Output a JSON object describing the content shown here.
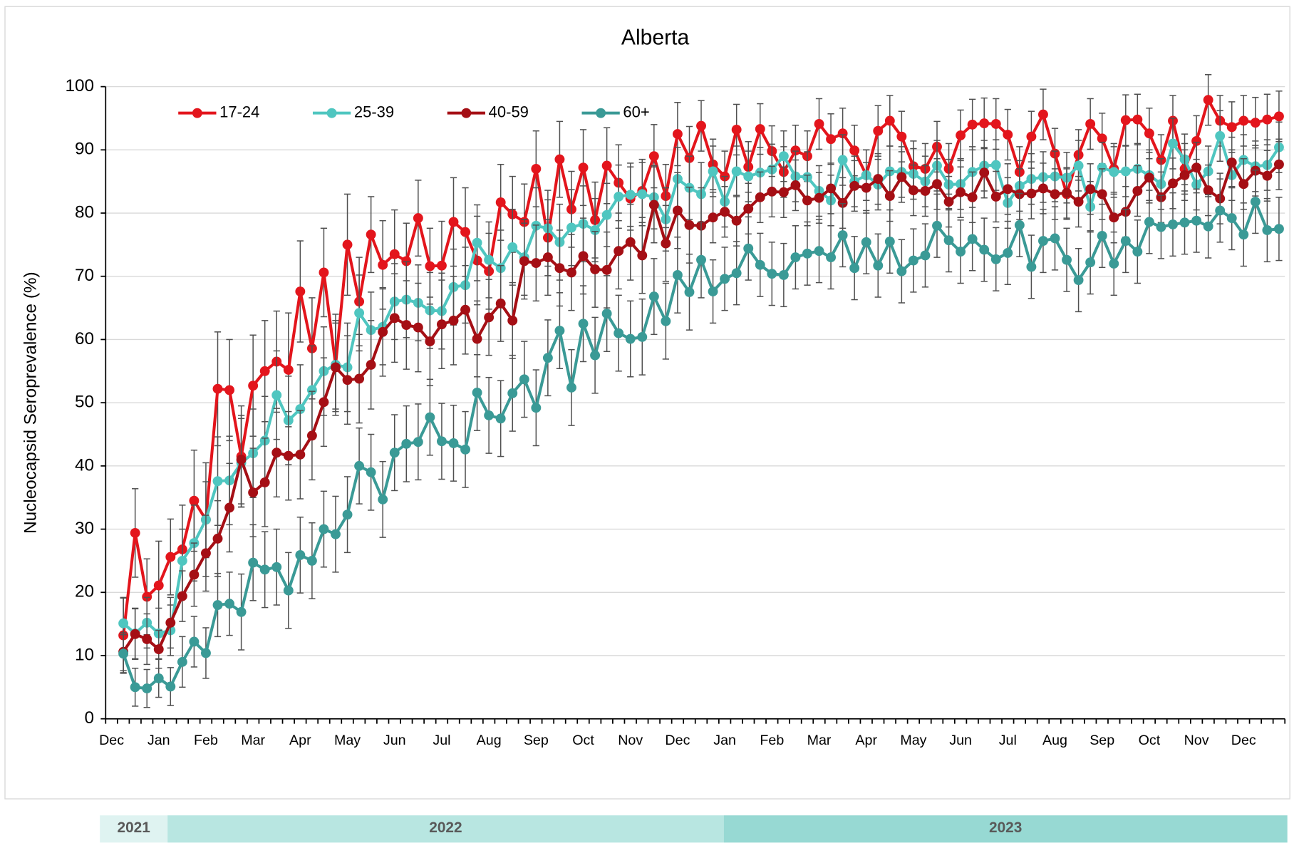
{
  "chart_data": {
    "type": "line",
    "title": "Alberta",
    "y_label": "Nucleocapsid Seroprevalence (%)",
    "categories": [
      "Dec",
      null,
      null,
      null,
      "Jan",
      null,
      null,
      null,
      "Feb",
      null,
      null,
      null,
      "Mar",
      null,
      null,
      null,
      "Apr",
      null,
      null,
      null,
      "May",
      null,
      null,
      null,
      "Jun",
      null,
      null,
      null,
      "Jul",
      null,
      null,
      null,
      "Aug",
      null,
      null,
      null,
      "Sep",
      null,
      null,
      null,
      "Oct",
      null,
      null,
      null,
      "Nov",
      null,
      null,
      null,
      "Dec",
      null,
      null,
      null,
      "Jan",
      null,
      null,
      null,
      "Feb",
      null,
      null,
      null,
      "Mar",
      null,
      null,
      null,
      "Apr",
      null,
      null,
      null,
      "May",
      null,
      null,
      null,
      "Jun",
      null,
      null,
      null,
      "Jul",
      null,
      null,
      null,
      "Aug",
      null,
      null,
      null,
      "Sep",
      null,
      null,
      null,
      "Oct",
      null,
      null,
      null,
      "Nov",
      null,
      null,
      null,
      "Dec",
      null,
      null
    ],
    "year_labels": [
      "2021",
      "2022",
      "2023"
    ],
    "ylim": [
      0,
      100
    ],
    "yticks": [
      0,
      10,
      20,
      30,
      40,
      50,
      60,
      70,
      80,
      90,
      100
    ],
    "grid": true,
    "legend": "upper left",
    "series": [
      {
        "name": "17-24",
        "color": "#e3151c",
        "values": [
          13.2,
          29.4,
          19.3,
          21.1,
          25.6,
          26.8,
          34.5,
          31.5,
          52.2,
          52.0,
          41.5,
          52.7,
          55.0,
          56.5,
          55.2,
          67.6,
          58.6,
          70.6,
          56.0,
          75.0,
          66.0,
          76.6,
          71.8,
          73.5,
          72.4,
          79.2,
          71.6,
          71.7,
          78.6,
          77.0,
          72.5,
          70.8,
          81.7,
          79.8,
          78.6,
          87.0,
          76.1,
          88.5,
          80.6,
          87.2,
          78.9,
          87.5,
          84.8,
          82.3,
          83.5,
          89.0,
          82.7,
          92.5,
          88.7,
          93.8,
          87.7,
          85.8,
          93.2,
          87.3,
          93.3,
          89.8,
          86.5,
          89.9,
          89.0,
          94.1,
          91.7,
          92.6,
          89.9,
          86.0,
          93.0,
          94.6,
          92.1,
          87.4,
          87.0,
          90.5,
          87.0,
          92.3,
          94.0,
          94.2,
          94.1,
          92.4,
          86.5,
          92.1,
          95.6,
          89.4,
          83.0,
          89.2,
          94.1,
          91.8,
          87.0,
          94.7,
          94.8,
          92.6,
          88.4,
          94.6,
          87.0,
          91.4,
          97.9,
          94.6,
          93.6,
          94.6,
          94.3,
          94.8,
          95.3
        ],
        "errors": [
          6,
          7,
          6,
          7,
          6,
          7,
          8,
          9,
          9,
          8,
          8,
          8,
          8,
          8,
          9,
          8,
          8,
          7,
          8,
          8,
          7,
          6,
          7,
          7,
          6,
          6,
          6,
          7,
          7,
          7,
          7,
          6,
          6,
          6,
          6,
          6,
          6,
          6,
          6,
          6,
          6,
          6,
          6,
          5,
          5,
          5,
          5,
          5,
          5,
          4,
          4,
          4,
          4,
          4,
          4,
          4,
          4,
          4,
          4,
          4,
          4,
          4,
          4,
          4,
          4,
          4,
          4,
          4,
          4,
          4,
          4,
          4,
          4,
          4,
          4,
          4,
          4,
          4,
          4,
          4,
          4,
          4,
          4,
          4,
          4,
          4,
          4,
          4,
          4,
          4,
          4,
          4,
          4,
          4,
          4,
          4,
          4,
          4,
          4
        ]
      },
      {
        "name": "25-39",
        "color": "#4fc6c0",
        "values": [
          15.1,
          13.5,
          15.2,
          13.5,
          14.0,
          25.0,
          27.8,
          31.5,
          37.6,
          37.7,
          40.5,
          42.0,
          44.0,
          51.2,
          47.2,
          49.0,
          52.0,
          55.0,
          56.0,
          55.6,
          64.2,
          61.5,
          62.0,
          66.0,
          66.3,
          65.8,
          64.6,
          64.5,
          68.3,
          68.6,
          75.3,
          72.6,
          71.3,
          74.6,
          73.0,
          78.0,
          77.6,
          75.4,
          77.7,
          78.3,
          77.3,
          79.7,
          82.6,
          82.9,
          83.0,
          82.5,
          79.0,
          85.4,
          84.0,
          83.0,
          86.6,
          81.8,
          86.6,
          85.8,
          86.4,
          86.9,
          89.0,
          85.8,
          85.7,
          83.5,
          82.0,
          88.4,
          85.0,
          86.0,
          84.5,
          86.6,
          86.5,
          86.2,
          85.0,
          87.5,
          84.5,
          84.6,
          86.5,
          87.5,
          87.6,
          81.6,
          84.3,
          85.4,
          85.7,
          85.8,
          85.6,
          87.5,
          81.0,
          87.2,
          86.5,
          86.6,
          87.0,
          86.0,
          84.6,
          91.0,
          88.5,
          84.5,
          86.6,
          92.2,
          86.0,
          88.4,
          87.4,
          87.6,
          90.4
        ],
        "errors": [
          4,
          4,
          4,
          4,
          4,
          5,
          6,
          6,
          7,
          7,
          7,
          7,
          7,
          7,
          7,
          7,
          7,
          7,
          7,
          7,
          6,
          6,
          6,
          6,
          6,
          6,
          6,
          6,
          6,
          6,
          6,
          6,
          6,
          6,
          6,
          6,
          6,
          6,
          6,
          6,
          5,
          5,
          5,
          5,
          5,
          5,
          5,
          5,
          5,
          5,
          4,
          4,
          4,
          4,
          4,
          4,
          4,
          4,
          4,
          4,
          4,
          4,
          4,
          4,
          4,
          4,
          4,
          4,
          4,
          4,
          4,
          4,
          4,
          4,
          4,
          4,
          4,
          4,
          4,
          4,
          4,
          4,
          4,
          4,
          4,
          4,
          4,
          4,
          4,
          4,
          4,
          4,
          4,
          4,
          4,
          4,
          4,
          4,
          4
        ]
      },
      {
        "name": "40-59",
        "color": "#a50f15",
        "values": [
          10.6,
          13.4,
          12.6,
          11.0,
          15.2,
          19.4,
          22.8,
          26.2,
          28.5,
          33.4,
          41.0,
          35.8,
          37.4,
          42.1,
          41.6,
          41.8,
          44.8,
          50.1,
          55.6,
          53.6,
          53.8,
          56.0,
          61.2,
          63.4,
          62.3,
          61.9,
          59.7,
          62.4,
          63.0,
          64.7,
          60.1,
          63.5,
          65.7,
          63.0,
          72.4,
          72.1,
          73.0,
          71.3,
          70.6,
          73.2,
          71.1,
          71.0,
          74.0,
          75.4,
          73.3,
          81.3,
          75.2,
          80.4,
          78.1,
          78.0,
          79.3,
          80.2,
          78.8,
          80.7,
          82.5,
          83.4,
          83.3,
          84.4,
          82.0,
          82.4,
          83.9,
          81.6,
          84.3,
          84.0,
          85.4,
          82.7,
          85.7,
          83.6,
          83.5,
          84.6,
          81.8,
          83.3,
          82.5,
          86.4,
          82.6,
          83.8,
          83.0,
          83.1,
          83.9,
          83.0,
          83.2,
          81.8,
          83.8,
          83.0,
          79.3,
          80.2,
          83.5,
          85.6,
          82.5,
          84.7,
          86.0,
          87.2,
          83.6,
          82.3,
          88.0,
          84.6,
          86.7,
          85.9,
          87.7
        ],
        "errors": [
          3,
          4,
          4,
          3,
          4,
          4,
          5,
          6,
          6,
          7,
          7,
          7,
          7,
          7,
          7,
          7,
          7,
          7,
          7,
          7,
          7,
          7,
          7,
          7,
          7,
          7,
          7,
          7,
          7,
          7,
          6,
          6,
          6,
          6,
          6,
          6,
          6,
          6,
          6,
          6,
          6,
          6,
          6,
          6,
          6,
          6,
          6,
          6,
          6,
          6,
          4,
          4,
          4,
          4,
          4,
          4,
          4,
          4,
          4,
          4,
          4,
          4,
          4,
          4,
          4,
          4,
          4,
          4,
          4,
          4,
          4,
          4,
          4,
          4,
          4,
          4,
          4,
          4,
          4,
          4,
          4,
          4,
          4,
          4,
          4,
          4,
          4,
          4,
          4,
          4,
          4,
          4,
          4,
          4,
          4,
          4,
          4,
          4,
          4
        ]
      },
      {
        "name": "60+",
        "color": "#3a9a96",
        "values": [
          10.3,
          5.0,
          4.8,
          6.4,
          5.1,
          9.0,
          12.2,
          10.4,
          18.0,
          18.2,
          16.9,
          24.7,
          23.6,
          24.0,
          20.3,
          25.9,
          25.0,
          30.0,
          29.2,
          32.3,
          40.0,
          39.0,
          34.7,
          42.1,
          43.5,
          43.8,
          47.7,
          43.9,
          43.6,
          42.6,
          51.6,
          48.0,
          47.5,
          51.5,
          53.7,
          49.2,
          57.1,
          61.4,
          52.4,
          62.5,
          57.5,
          64.1,
          61.0,
          60.1,
          60.4,
          66.8,
          62.9,
          70.2,
          67.5,
          72.6,
          67.6,
          69.6,
          70.5,
          74.4,
          71.8,
          70.4,
          70.2,
          73.0,
          73.6,
          74.0,
          73.0,
          76.5,
          71.3,
          75.4,
          71.7,
          75.5,
          70.8,
          72.5,
          73.3,
          78.0,
          75.7,
          73.9,
          75.9,
          74.2,
          72.7,
          73.7,
          78.1,
          71.5,
          75.6,
          76.0,
          72.6,
          69.4,
          72.2,
          76.4,
          72.0,
          75.6,
          73.9,
          78.6,
          77.8,
          78.2,
          78.5,
          78.8,
          77.9,
          80.4,
          79.2,
          76.6,
          81.8,
          77.3,
          77.5
        ],
        "errors": [
          3,
          3,
          3,
          3,
          3,
          4,
          4,
          4,
          5,
          5,
          6,
          6,
          6,
          6,
          6,
          6,
          6,
          6,
          6,
          6,
          6,
          6,
          6,
          6,
          6,
          6,
          6,
          6,
          6,
          6,
          6,
          6,
          6,
          6,
          6,
          6,
          6,
          6,
          6,
          6,
          6,
          6,
          6,
          6,
          6,
          6,
          6,
          6,
          6,
          6,
          5,
          5,
          5,
          5,
          5,
          5,
          5,
          5,
          5,
          5,
          5,
          5,
          5,
          5,
          5,
          5,
          5,
          5,
          5,
          5,
          5,
          5,
          5,
          5,
          5,
          5,
          5,
          5,
          5,
          5,
          5,
          5,
          5,
          5,
          5,
          5,
          5,
          5,
          5,
          5,
          5,
          5,
          5,
          5,
          5,
          5,
          5,
          5,
          5
        ]
      }
    ]
  }
}
